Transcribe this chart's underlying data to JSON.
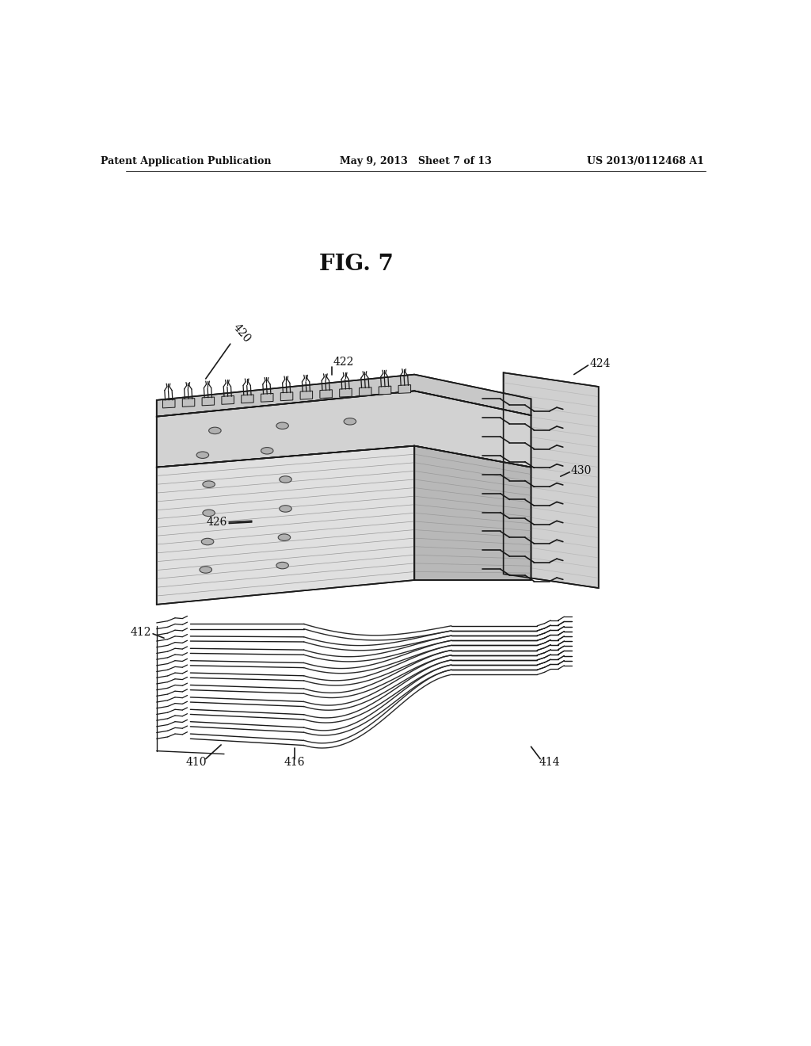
{
  "background_color": "#ffffff",
  "header_left": "Patent Application Publication",
  "header_center": "May 9, 2013   Sheet 7 of 13",
  "header_right": "US 2013/0112468 A1",
  "fig_label": "FIG. 7",
  "line_color": "#1a1a1a",
  "line_width": 1.2,
  "fill_light": "#d8d8d8",
  "fill_mid": "#c4c4c4",
  "fill_dark": "#aaaaaa",
  "fill_white": "#f0f0f0"
}
